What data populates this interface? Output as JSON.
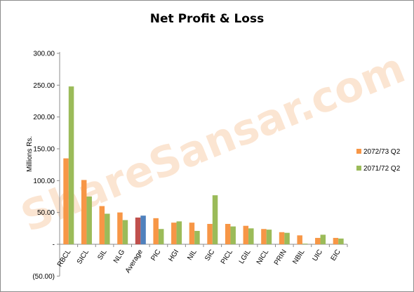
{
  "chart_data": {
    "type": "bar",
    "title": "Net Profit & Loss",
    "xlabel": "",
    "ylabel": "Millions Rs.",
    "ylim": [
      -50,
      300
    ],
    "yticks": [
      "(50.00)",
      "-",
      "50.00",
      "100.00",
      "150.00",
      "200.00",
      "250.00",
      "300.00"
    ],
    "ytick_values": [
      -50,
      0,
      50,
      100,
      150,
      200,
      250,
      300
    ],
    "categories": [
      "RBCL",
      "SICL",
      "SIL",
      "NLG",
      "Average",
      "PIC",
      "HGI",
      "NIL",
      "SIC",
      "PICL",
      "LGIL",
      "NICL",
      "PRIN",
      "NBIL",
      "UIC",
      "EIC"
    ],
    "series": [
      {
        "name": "2072/73 Q2",
        "color": "#f79646",
        "values": [
          135,
          101,
          60,
          50,
          42,
          41,
          34,
          34,
          32,
          32,
          29,
          24,
          19,
          14,
          10,
          10
        ]
      },
      {
        "name": "2071/72 Q2",
        "color": "#9bbb59",
        "values": [
          248,
          75,
          48,
          38,
          45,
          24,
          36,
          21,
          77,
          28,
          25,
          23,
          18,
          1,
          15,
          9
        ]
      }
    ],
    "average_colors": [
      "#c0504d",
      "#4f81bd"
    ],
    "legend_position": "right",
    "grid": false,
    "watermark": "ShareSansar.com"
  }
}
